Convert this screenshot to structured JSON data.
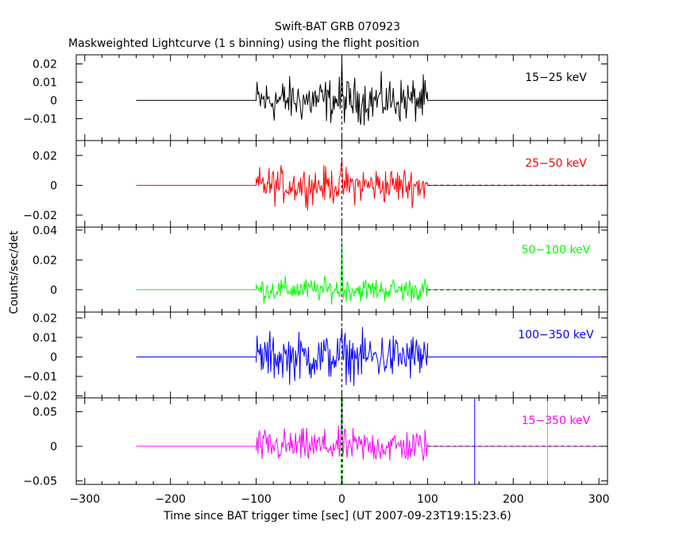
{
  "chart_data": {
    "type": "line",
    "title": "Swift-BAT GRB 070923",
    "subtitle": "Maskweighted Lightcurve (1 s binning) using the flight position",
    "xlabel": "Time since BAT trigger time [sec] (UT 2007-09-23T19:15:23.6)",
    "ylabel": "Counts/sec/det",
    "xlim": [
      -310,
      310
    ],
    "xticks": [
      -300,
      -200,
      -100,
      0,
      100,
      200,
      300
    ],
    "xtick_labels": [
      "−300",
      "−200",
      "−100",
      "0",
      "100",
      "200",
      "300"
    ],
    "data_range": [
      -100,
      100
    ],
    "zero_level_range": [
      -240,
      310
    ],
    "panels": [
      {
        "label": "15−25 keV",
        "color": "#000000",
        "ylim": [
          -0.022,
          0.025
        ],
        "noise_amp": 0.0085,
        "yticks": [
          -0.01,
          0,
          0.01,
          0.02
        ],
        "ytick_labels": [
          "−0.01",
          "0",
          "0.01",
          "0.02"
        ],
        "dashed_after_100": false,
        "peak_at_zero": 0.022
      },
      {
        "label": "25−50 keV",
        "color": "#ff0000",
        "ylim": [
          -0.028,
          0.03
        ],
        "noise_amp": 0.0085,
        "yticks": [
          -0.02,
          0,
          0.02
        ],
        "ytick_labels": [
          "−0.02",
          "0",
          "0.02"
        ],
        "dashed_after_100": true,
        "peak_at_zero": 0.018
      },
      {
        "label": "50−100 keV",
        "color": "#00ff00",
        "ylim": [
          -0.015,
          0.042
        ],
        "noise_amp": 0.0055,
        "yticks": [
          0,
          0.02,
          0.04
        ],
        "ytick_labels": [
          "0",
          "0.02",
          "0.04"
        ],
        "dashed_after_100": true,
        "peak_at_zero": 0.034
      },
      {
        "label": "100−350 keV",
        "color": "#0000ff",
        "ylim": [
          -0.021,
          0.023
        ],
        "noise_amp": 0.0085,
        "yticks": [
          -0.02,
          -0.01,
          0,
          0.01,
          0.02
        ],
        "ytick_labels": [
          "−0.02",
          "−0.01",
          "0",
          "0.01",
          "0.02"
        ],
        "dashed_after_100": false,
        "peak_at_zero": 0.015
      },
      {
        "label": "15−350 keV",
        "color": "#ff00ff",
        "ylim": [
          -0.055,
          0.07
        ],
        "noise_amp": 0.017,
        "yticks": [
          -0.05,
          0,
          0.05
        ],
        "ytick_labels": [
          "−0.05",
          "0",
          "0.05"
        ],
        "dashed_after_100": true,
        "peak_at_zero": 0.065
      }
    ],
    "marker_lines": [
      {
        "name": "trigger-marker",
        "x": 0,
        "color": "#000000",
        "style": "dashed",
        "panels": "all"
      },
      {
        "name": "t90-start-marker",
        "x": -1,
        "color": "#00c000",
        "style": "dashed",
        "panels": [
          4
        ]
      },
      {
        "name": "t90-end-marker",
        "x": 1,
        "color": "#00c000",
        "style": "dashed",
        "panels": [
          4
        ]
      },
      {
        "name": "blue-marker",
        "x": 155,
        "color": "#0000ff",
        "style": "solid",
        "panels": [
          4
        ]
      },
      {
        "name": "orange-marker",
        "x": 240,
        "color": "#ff9900",
        "style": "solid",
        "panels": [
          4
        ]
      }
    ]
  }
}
